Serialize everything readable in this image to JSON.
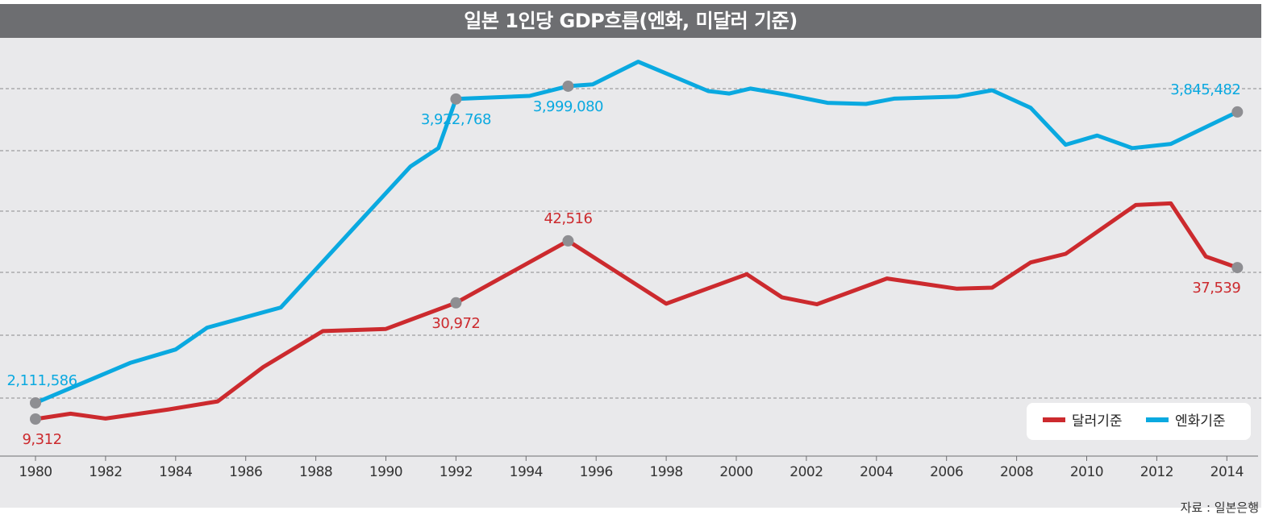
{
  "title": "일본 1인당 GDP흐름(엔화, 미달러 기준)",
  "source": "자료 : 일본은행",
  "colors": {
    "dollar": "#cc2a2e",
    "yen": "#0aa9e0",
    "marker": "#8e8e92"
  },
  "chart_data": {
    "type": "line",
    "title": "일본 1인당 GDP흐름(엔화, 미달러 기준)",
    "xlabel": "",
    "ylabel": "",
    "x_ticks": [
      1980,
      1982,
      1984,
      1986,
      1988,
      1990,
      1992,
      1994,
      1996,
      1998,
      2000,
      2002,
      2004,
      2006,
      2008,
      2010,
      2012,
      2014
    ],
    "xlim": [
      1980,
      2014.5
    ],
    "grid": true,
    "legend_position": "bottom-right",
    "series": [
      {
        "name": "달러기준",
        "color": "#cc2a2e",
        "points": [
          [
            1980,
            9312
          ],
          [
            1981,
            10300
          ],
          [
            1982,
            9400
          ],
          [
            1983.8,
            11100
          ],
          [
            1985.2,
            12600
          ],
          [
            1986.5,
            19000
          ],
          [
            1988.2,
            25700
          ],
          [
            1990,
            26100
          ],
          [
            1992,
            30972
          ],
          [
            1995.2,
            42516
          ],
          [
            1998,
            30800
          ],
          [
            2000.3,
            36300
          ],
          [
            2001.3,
            32000
          ],
          [
            2002.3,
            30700
          ],
          [
            2004.3,
            35500
          ],
          [
            2006.3,
            33600
          ],
          [
            2007.3,
            33800
          ],
          [
            2008.4,
            38500
          ],
          [
            2009.4,
            40100
          ],
          [
            2011.4,
            49200
          ],
          [
            2012.4,
            49500
          ],
          [
            2013.4,
            39600
          ],
          [
            2014.3,
            37539
          ]
        ]
      },
      {
        "name": "엔화기준",
        "color": "#0aa9e0",
        "points": [
          [
            1980,
            2111586
          ],
          [
            1982.7,
            2350000
          ],
          [
            1984,
            2430000
          ],
          [
            1984.9,
            2560000
          ],
          [
            1987,
            2680000
          ],
          [
            1989.2,
            3180000
          ],
          [
            1990.7,
            3520000
          ],
          [
            1991.5,
            3630000
          ],
          [
            1992,
            3922768
          ],
          [
            1994.1,
            3941000
          ],
          [
            1995.2,
            3999080
          ],
          [
            1995.9,
            4010000
          ],
          [
            1997.2,
            4145000
          ],
          [
            1999.2,
            3970000
          ],
          [
            1999.8,
            3955000
          ],
          [
            2000.4,
            3985000
          ],
          [
            2001.4,
            3950000
          ],
          [
            2002.6,
            3900000
          ],
          [
            2003.7,
            3893000
          ],
          [
            2004.5,
            3925000
          ],
          [
            2006.3,
            3937000
          ],
          [
            2007.3,
            3975000
          ],
          [
            2008.4,
            3870000
          ],
          [
            2009.4,
            3650000
          ],
          [
            2010.3,
            3705000
          ],
          [
            2011.3,
            3630000
          ],
          [
            2012.4,
            3655000
          ],
          [
            2014.3,
            3845482
          ]
        ]
      }
    ],
    "annotations": [
      {
        "series": "엔화기준",
        "x": 1980,
        "y": 2111586,
        "label": "2,111,586",
        "position": "above"
      },
      {
        "series": "엔화기준",
        "x": 1992,
        "y": 3922768,
        "label": "3,922,768",
        "position": "below"
      },
      {
        "series": "엔화기준",
        "x": 1995.2,
        "y": 3999080,
        "label": "3,999,080",
        "position": "below"
      },
      {
        "series": "엔화기준",
        "x": 2014.3,
        "y": 3845482,
        "label": "3,845,482",
        "position": "above"
      },
      {
        "series": "달러기준",
        "x": 1980,
        "y": 9312,
        "label": "9,312",
        "position": "below"
      },
      {
        "series": "달러기준",
        "x": 1992,
        "y": 30972,
        "label": "30,972",
        "position": "below"
      },
      {
        "series": "달러기준",
        "x": 1995.2,
        "y": 42516,
        "label": "42,516",
        "position": "above"
      },
      {
        "series": "달러기준",
        "x": 2014.3,
        "y": 37539,
        "label": "37,539",
        "position": "below"
      }
    ]
  }
}
